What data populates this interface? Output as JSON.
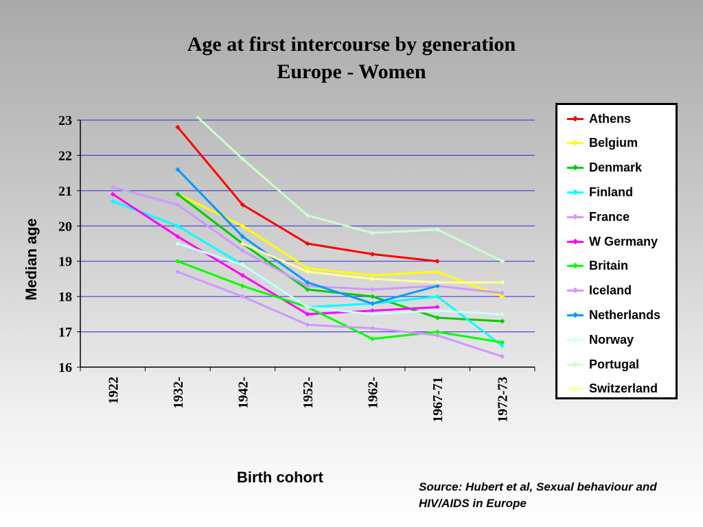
{
  "slide": {
    "title_line1": "Age at first intercourse by generation",
    "title_line2": "Europe - Women",
    "source": "Source:  Hubert et al, Sexual behaviour and HIV/AIDS in Europe"
  },
  "chart_data": {
    "type": "line",
    "title": "Age at first intercourse by generation Europe - Women",
    "xlabel": "Birth cohort",
    "ylabel": "Median age",
    "categories": [
      "1922",
      "1932-",
      "1942-",
      "1952-",
      "1962-",
      "1967-71",
      "1972-73"
    ],
    "yticks": [
      16,
      17,
      18,
      19,
      20,
      21,
      22,
      23
    ],
    "ylim": [
      16,
      23
    ],
    "grid": true,
    "legend_position": "right",
    "series": [
      {
        "name": "Athens",
        "color": "#ff0000",
        "values": [
          null,
          22.8,
          20.6,
          19.5,
          19.2,
          19.0,
          null
        ]
      },
      {
        "name": "Belgium",
        "color": "#ffff00",
        "values": [
          null,
          20.9,
          20.0,
          18.8,
          18.6,
          18.7,
          18.0
        ]
      },
      {
        "name": "Denmark",
        "color": "#00cc00",
        "values": [
          null,
          20.9,
          19.5,
          18.2,
          18.0,
          17.4,
          17.3
        ]
      },
      {
        "name": "Finland",
        "color": "#00ffff",
        "values": [
          20.7,
          20.0,
          18.9,
          17.7,
          17.8,
          18.0,
          16.6
        ]
      },
      {
        "name": "France",
        "color": "#cc99ff",
        "values": [
          21.1,
          20.6,
          19.3,
          18.3,
          18.2,
          18.3,
          18.1
        ]
      },
      {
        "name": "W Germany",
        "color": "#ff00ff",
        "values": [
          20.9,
          19.7,
          18.6,
          17.5,
          17.6,
          17.7,
          null
        ]
      },
      {
        "name": "Britain",
        "color": "#00ff00",
        "values": [
          null,
          19.0,
          18.3,
          17.7,
          16.8,
          17.0,
          16.7
        ]
      },
      {
        "name": "Iceland",
        "color": "#cc99ff",
        "values": [
          null,
          18.7,
          18.0,
          17.2,
          17.1,
          16.9,
          16.3
        ]
      },
      {
        "name": "Netherlands",
        "color": "#0099ff",
        "values": [
          null,
          21.6,
          19.7,
          18.4,
          17.8,
          18.3,
          null
        ]
      },
      {
        "name": "Norway",
        "color": "#ccffff",
        "values": [
          null,
          19.5,
          18.9,
          17.7,
          17.5,
          17.6,
          17.5
        ]
      },
      {
        "name": "Portugal",
        "color": "#ccffcc",
        "values": [
          null,
          null,
          21.9,
          20.3,
          19.8,
          19.9,
          19.0
        ]
      },
      {
        "name": "Switzerland",
        "color": "#ffff99",
        "values": [
          null,
          null,
          19.5,
          18.7,
          18.5,
          18.4,
          18.4
        ]
      }
    ]
  }
}
